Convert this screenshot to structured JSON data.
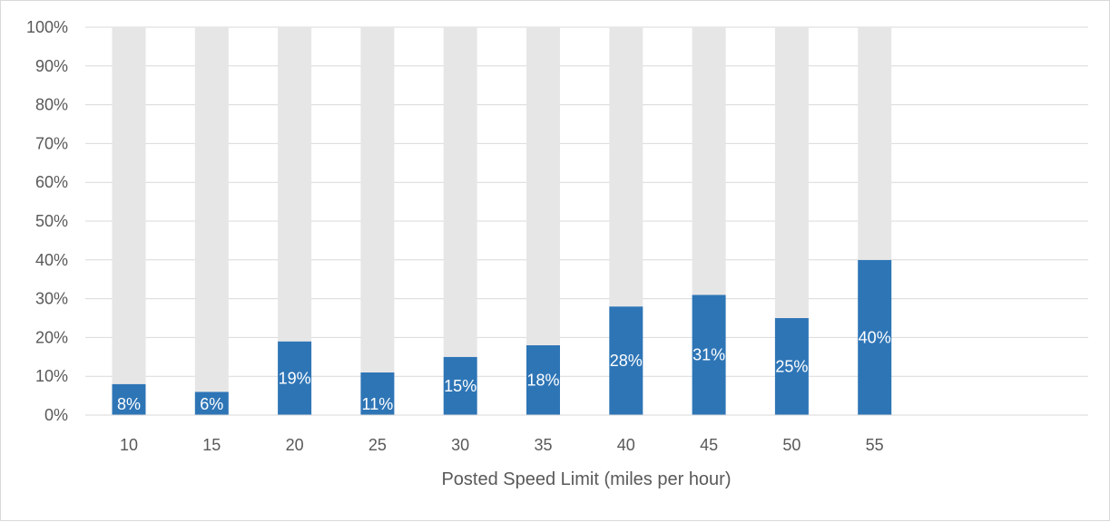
{
  "chart_data": {
    "type": "bar",
    "stacked": true,
    "title": "",
    "xlabel": "Posted Speed Limit (miles per hour)",
    "ylabel": "",
    "ylim": [
      0,
      100
    ],
    "y_ticks": [
      "0%",
      "10%",
      "20%",
      "30%",
      "40%",
      "50%",
      "60%",
      "70%",
      "80%",
      "90%",
      "100%"
    ],
    "categories": [
      "10",
      "15",
      "20",
      "25",
      "30",
      "35",
      "40",
      "45",
      "50",
      "55"
    ],
    "series": [
      {
        "values": [
          8,
          6,
          19,
          11,
          15,
          18,
          28,
          31,
          25,
          40
        ],
        "labels": [
          "8%",
          "6%",
          "19%",
          "11%",
          "15%",
          "18%",
          "28%",
          "31%",
          "25%",
          "40%"
        ],
        "color": "#2e75b6"
      },
      {
        "values": [
          92,
          94,
          81,
          89,
          85,
          82,
          72,
          69,
          75,
          60
        ],
        "color": "#e7e6e6"
      }
    ],
    "grid": true,
    "legend": "none"
  }
}
